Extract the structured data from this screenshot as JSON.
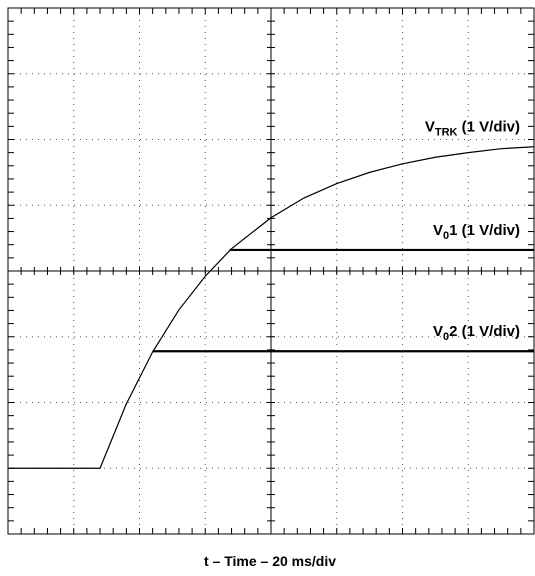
{
  "chart_data": {
    "type": "line",
    "xlabel": "t – Time – 20 ms/div",
    "xlim": [
      0,
      8
    ],
    "ylim": [
      0,
      8
    ],
    "xticks": [
      0,
      1,
      2,
      3,
      4,
      5,
      6,
      7,
      8
    ],
    "yticks": [
      0,
      1,
      2,
      3,
      4,
      5,
      6,
      7,
      8
    ],
    "grid": true,
    "series": [
      {
        "name": [
          "V",
          "TRK",
          " (1 V/div)"
        ],
        "color": "#000000",
        "x": [
          0,
          1.4,
          1.8,
          2.2,
          2.6,
          3.0,
          3.4,
          4.0,
          4.5,
          5.0,
          5.5,
          6.0,
          6.5,
          7.0,
          7.5,
          8.0
        ],
        "values": [
          1.0,
          1.0,
          1.98,
          2.77,
          3.41,
          3.92,
          4.34,
          4.81,
          5.11,
          5.33,
          5.5,
          5.63,
          5.73,
          5.8,
          5.86,
          5.89
        ]
      },
      {
        "name": [
          "V",
          "0",
          "1 (1 V/div)"
        ],
        "color": "#000000",
        "x": [
          3.37,
          8.0
        ],
        "values": [
          4.32,
          4.32
        ]
      },
      {
        "name": [
          "V",
          "0",
          "2 (1 V/div)"
        ],
        "color": "#000000",
        "x": [
          2.2,
          8.0
        ],
        "values": [
          2.78,
          2.78
        ]
      }
    ]
  }
}
